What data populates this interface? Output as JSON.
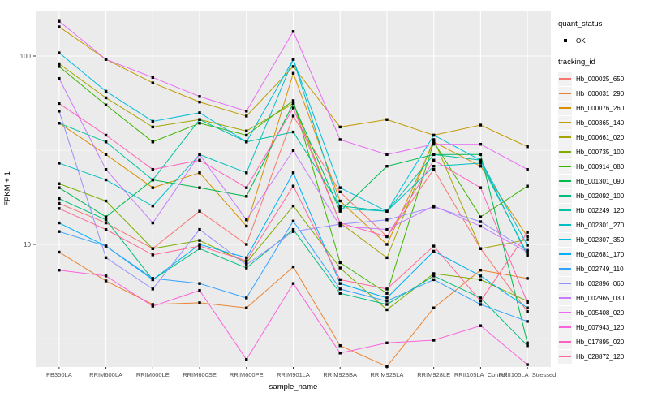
{
  "figure": {
    "panel_bg": "#EBEBEB",
    "grid_color": "#FFFFFF",
    "axis_text_color": "#4D4D4D",
    "marker_color": "#000000",
    "marker_shape": "square"
  },
  "legend": {
    "quant_status_title": "quant_status",
    "quant_status_items": [
      {
        "label": "OK"
      }
    ],
    "tracking_title": "tracking_id"
  },
  "chart_data": {
    "type": "line",
    "title": "",
    "xlabel": "sample_name",
    "ylabel": "FPKM + 1",
    "y_scale": "log10",
    "ylim": [
      2.2,
      175
    ],
    "y_major_ticks": [
      {
        "label": "100",
        "value": 100
      },
      {
        "label": "10",
        "value": 10
      }
    ],
    "y_minor_ticks": [
      31.6,
      3.16
    ],
    "grid": true,
    "legend_position": "right",
    "categories": [
      "PB350LA",
      "RRIM600LA",
      "RRIM600LE",
      "RRIM600SE",
      "RRIM600PE",
      "RRIM901LA",
      "RRIM928BA",
      "RRIM928LA",
      "RRIM928LE",
      "RRII105LA_Control",
      "RRII105LA_Stressed"
    ],
    "series": [
      {
        "name": "Hb_000025_650",
        "color": "#F8766D",
        "values": [
          16.5,
          13,
          9.5,
          15,
          10,
          48,
          19,
          11,
          25,
          9.5,
          4.4
        ]
      },
      {
        "name": "Hb_000031_290",
        "color": "#EA8331",
        "values": [
          9.1,
          6.4,
          4.8,
          4.9,
          4.6,
          7.6,
          2.9,
          2.25,
          4.6,
          7.3,
          6.6
        ]
      },
      {
        "name": "Hb_000076_260",
        "color": "#D89000",
        "values": [
          44,
          30,
          20,
          24,
          12.5,
          81,
          17,
          10,
          35,
          26,
          11
        ]
      },
      {
        "name": "Hb_000365_140",
        "color": "#C09B00",
        "values": [
          143,
          96,
          72,
          57,
          48,
          88,
          42,
          46,
          38,
          43,
          33
        ]
      },
      {
        "name": "Hb_000661_020",
        "color": "#A3A500",
        "values": [
          91,
          60,
          42,
          46,
          40,
          56,
          13,
          8.5,
          36,
          9.5,
          10.6
        ]
      },
      {
        "name": "Hb_000735_100",
        "color": "#7CAE00",
        "values": [
          21,
          17,
          9.5,
          10.5,
          8,
          16,
          7.5,
          4.5,
          7,
          6.5,
          5
        ]
      },
      {
        "name": "Hb_000914_080",
        "color": "#39B600",
        "values": [
          88,
          55,
          35,
          44,
          38,
          58,
          8,
          5.5,
          35,
          14,
          20.4
        ]
      },
      {
        "name": "Hb_001301_090",
        "color": "#00BB4E",
        "values": [
          20,
          14,
          22,
          20,
          18,
          56,
          15,
          26,
          30,
          30,
          3
        ]
      },
      {
        "name": "Hb_002092_100",
        "color": "#00BF7D",
        "values": [
          17.5,
          13.5,
          6.5,
          9.5,
          7.5,
          12,
          5.5,
          4.8,
          6.8,
          5.2,
          2.9
        ]
      },
      {
        "name": "Hb_002249_120",
        "color": "#00C1A3",
        "values": [
          44,
          35,
          22,
          46,
          35,
          39.5,
          16,
          15,
          30,
          28,
          8.7
        ]
      },
      {
        "name": "Hb_002301_270",
        "color": "#00BFC4",
        "values": [
          27,
          22,
          16,
          30,
          24,
          96,
          15.5,
          15,
          26,
          27,
          8.9
        ]
      },
      {
        "name": "Hb_002307_350",
        "color": "#00BBDA",
        "values": [
          104,
          65,
          45,
          50,
          35,
          96,
          20,
          15,
          38,
          28,
          9.9
        ]
      },
      {
        "name": "Hb_002681_170",
        "color": "#00B0F6",
        "values": [
          13,
          9.8,
          6.5,
          10,
          8.5,
          24,
          6.2,
          5.2,
          9.2,
          6.8,
          4.6
        ]
      },
      {
        "name": "Hb_002749_110",
        "color": "#35A2FF",
        "values": [
          11.7,
          9.8,
          6.6,
          6.2,
          5.2,
          13.3,
          5.8,
          5,
          6.5,
          4.8,
          3.9
        ]
      },
      {
        "name": "Hb_002896_060",
        "color": "#9590FF",
        "values": [
          51,
          8.5,
          5.8,
          12,
          7.8,
          11.7,
          12.8,
          13.5,
          15.8,
          13.2,
          9.3
        ]
      },
      {
        "name": "Hb_002965_030",
        "color": "#C77CFF",
        "values": [
          76,
          25,
          13,
          30,
          13.5,
          31.5,
          12.5,
          12,
          16,
          12.5,
          9.1
        ]
      },
      {
        "name": "Hb_005408_020",
        "color": "#E76BF3",
        "values": [
          153,
          96,
          77,
          61,
          51,
          135,
          36,
          30,
          34,
          34,
          25
        ]
      },
      {
        "name": "Hb_007943_120",
        "color": "#FA62DB",
        "values": [
          7.3,
          6.8,
          4.7,
          5.7,
          2.45,
          6.2,
          2.65,
          3,
          3.1,
          3.7,
          2.3
        ]
      },
      {
        "name": "Hb_017895_020",
        "color": "#FF62BC",
        "values": [
          56,
          38,
          25,
          28,
          20,
          53,
          13,
          11,
          28,
          20,
          4.9
        ]
      },
      {
        "name": "Hb_028872_120",
        "color": "#FF6A98",
        "values": [
          15.5,
          12,
          8.8,
          9.8,
          8.2,
          20.4,
          6.5,
          5.8,
          9.8,
          5,
          11.6
        ]
      }
    ]
  }
}
